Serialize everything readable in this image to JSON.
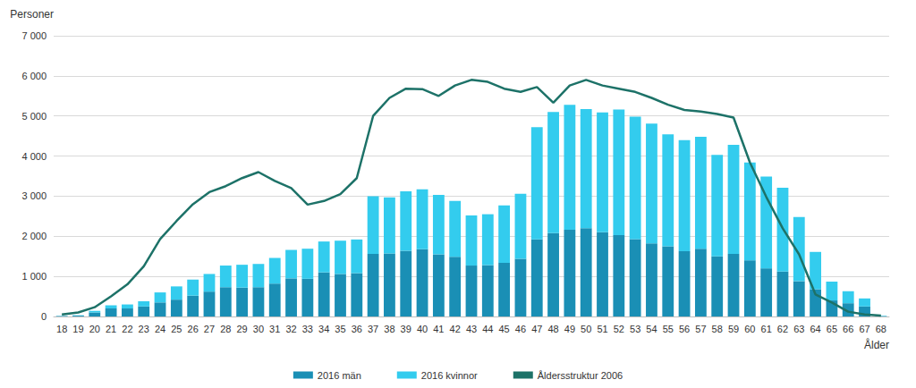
{
  "chart_data": {
    "type": "bar",
    "stacked": true,
    "y_label": "Personer",
    "x_label": "Ålder",
    "categories": [
      "18",
      "19",
      "20",
      "21",
      "22",
      "23",
      "24",
      "25",
      "26",
      "27",
      "28",
      "29",
      "30",
      "31",
      "32",
      "33",
      "34",
      "35",
      "36",
      "37",
      "38",
      "39",
      "40",
      "41",
      "42",
      "43",
      "44",
      "45",
      "46",
      "47",
      "48",
      "49",
      "50",
      "51",
      "52",
      "53",
      "54",
      "55",
      "56",
      "57",
      "58",
      "59",
      "60",
      "61",
      "62",
      "63",
      "64",
      "65",
      "66",
      "67",
      "68"
    ],
    "series": [
      {
        "name": "2016 män",
        "type": "bar",
        "color": "#1a8fb5",
        "values": [
          10,
          20,
          100,
          200,
          200,
          250,
          350,
          420,
          520,
          620,
          730,
          720,
          730,
          820,
          950,
          940,
          1100,
          1060,
          1080,
          1560,
          1570,
          1640,
          1680,
          1550,
          1490,
          1270,
          1280,
          1340,
          1440,
          1920,
          2080,
          2160,
          2200,
          2100,
          2030,
          1930,
          1820,
          1750,
          1630,
          1690,
          1500,
          1560,
          1400,
          1200,
          1120,
          880,
          680,
          400,
          330,
          250,
          10
        ]
      },
      {
        "name": "2016 kvinnor",
        "type": "bar",
        "color": "#33ccee",
        "values": [
          5,
          10,
          40,
          80,
          100,
          130,
          250,
          330,
          400,
          440,
          540,
          570,
          580,
          640,
          710,
          750,
          770,
          830,
          840,
          1440,
          1400,
          1480,
          1490,
          1480,
          1390,
          1250,
          1270,
          1430,
          1620,
          2800,
          3020,
          3120,
          2970,
          2990,
          3130,
          3050,
          2990,
          2790,
          2770,
          2790,
          2530,
          2720,
          2440,
          2290,
          2090,
          1600,
          930,
          470,
          300,
          200,
          10
        ]
      },
      {
        "name": "Åldersstruktur 2006",
        "type": "line",
        "color": "#1d7268",
        "values": [
          50,
          100,
          230,
          500,
          800,
          1250,
          1930,
          2380,
          2800,
          3100,
          3250,
          3450,
          3600,
          3380,
          3200,
          2790,
          2880,
          3050,
          3450,
          5000,
          5450,
          5680,
          5670,
          5500,
          5760,
          5900,
          5850,
          5680,
          5600,
          5720,
          5330,
          5760,
          5900,
          5760,
          5680,
          5600,
          5450,
          5280,
          5150,
          5110,
          5050,
          4960,
          3840,
          2980,
          2200,
          1550,
          550,
          350,
          120,
          50,
          20
        ]
      }
    ],
    "ylim": [
      0,
      7000
    ],
    "yticks": [
      0,
      {
        "value": 1000,
        "label": "1 000"
      },
      {
        "value": 2000,
        "label": "2 000"
      },
      {
        "value": 3000,
        "label": "3 000"
      },
      {
        "value": 4000,
        "label": "4 000"
      },
      {
        "value": 5000,
        "label": "5 000"
      },
      {
        "value": 6000,
        "label": "6 000"
      },
      {
        "value": 7000,
        "label": "7 000"
      }
    ],
    "grid": true,
    "legend": "bottom"
  }
}
